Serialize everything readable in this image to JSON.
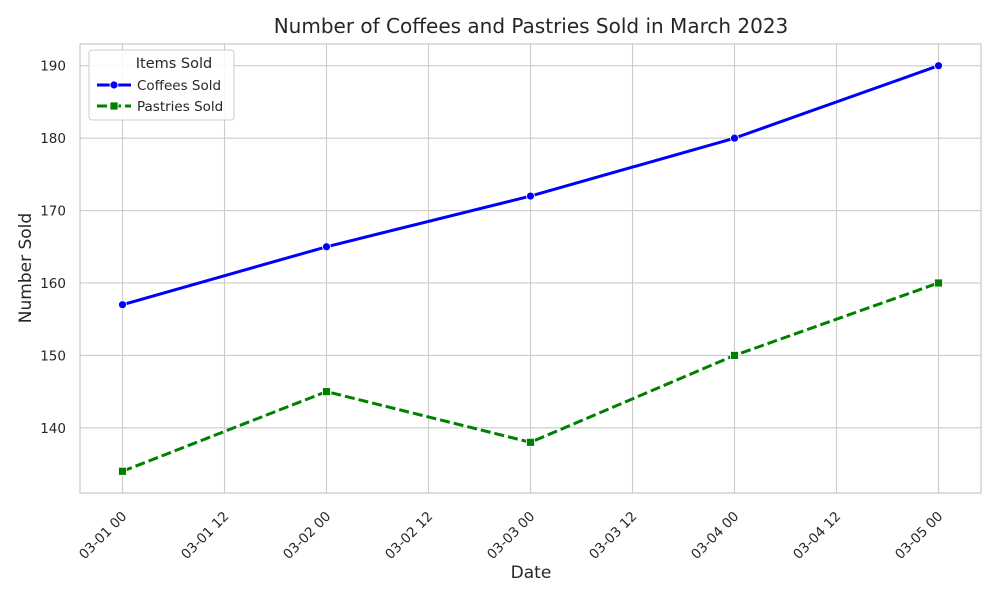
{
  "chart_data": {
    "type": "line",
    "title": "Number of Coffees and Pastries Sold in March 2023",
    "xlabel": "Date",
    "ylabel": "Number Sold",
    "x": [
      "2023-03-01",
      "2023-03-02",
      "2023-03-03",
      "2023-03-04",
      "2023-03-05"
    ],
    "xlim": [
      "2023-02-28 19:00",
      "2023-03-05 05:00"
    ],
    "x_tick_labels": [
      "03-01 00",
      "03-01 12",
      "03-02 00",
      "03-02 12",
      "03-03 00",
      "03-03 12",
      "03-04 00",
      "03-04 12",
      "03-05 00"
    ],
    "ylim": [
      131,
      193
    ],
    "y_ticks": [
      140,
      150,
      160,
      170,
      180,
      190
    ],
    "grid": true,
    "legend": {
      "title": "Items Sold",
      "placement": "top-left"
    },
    "series": [
      {
        "name": "Coffees Sold",
        "values": [
          157,
          165,
          172,
          180,
          190
        ],
        "color": "#0000ff",
        "marker": "circle",
        "linestyle": "solid"
      },
      {
        "name": "Pastries Sold",
        "values": [
          134,
          145,
          138,
          150,
          160
        ],
        "color": "#008000",
        "marker": "square",
        "linestyle": "dashed"
      }
    ]
  }
}
